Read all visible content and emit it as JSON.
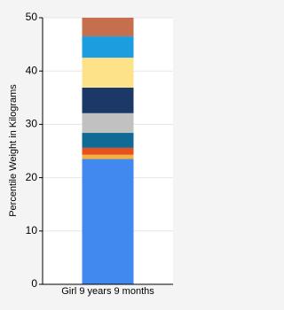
{
  "chart_data": {
    "type": "stacked-bar",
    "y_label": "Percentile Weight in Kilograms",
    "categories": [
      "Girl 9 years 9 months"
    ],
    "series": [
      {
        "color": "#4189ef",
        "values": [
          23.5
        ]
      },
      {
        "color": "#f6b13c",
        "values": [
          0.8
        ]
      },
      {
        "color": "#e5521d",
        "values": [
          1.3
        ]
      },
      {
        "color": "#0f6a95",
        "values": [
          2.8
        ]
      },
      {
        "color": "#c1c1c1",
        "values": [
          3.7
        ]
      },
      {
        "color": "#1b3866",
        "values": [
          4.8
        ]
      },
      {
        "color": "#fde28a",
        "values": [
          5.6
        ]
      },
      {
        "color": "#1b9de0",
        "values": [
          4.0
        ]
      },
      {
        "color": "#c66f4e",
        "values": [
          3.5
        ]
      }
    ],
    "ylim": [
      0,
      50
    ],
    "yticks": [
      0,
      10,
      20,
      30,
      40,
      50
    ],
    "grid": true
  }
}
